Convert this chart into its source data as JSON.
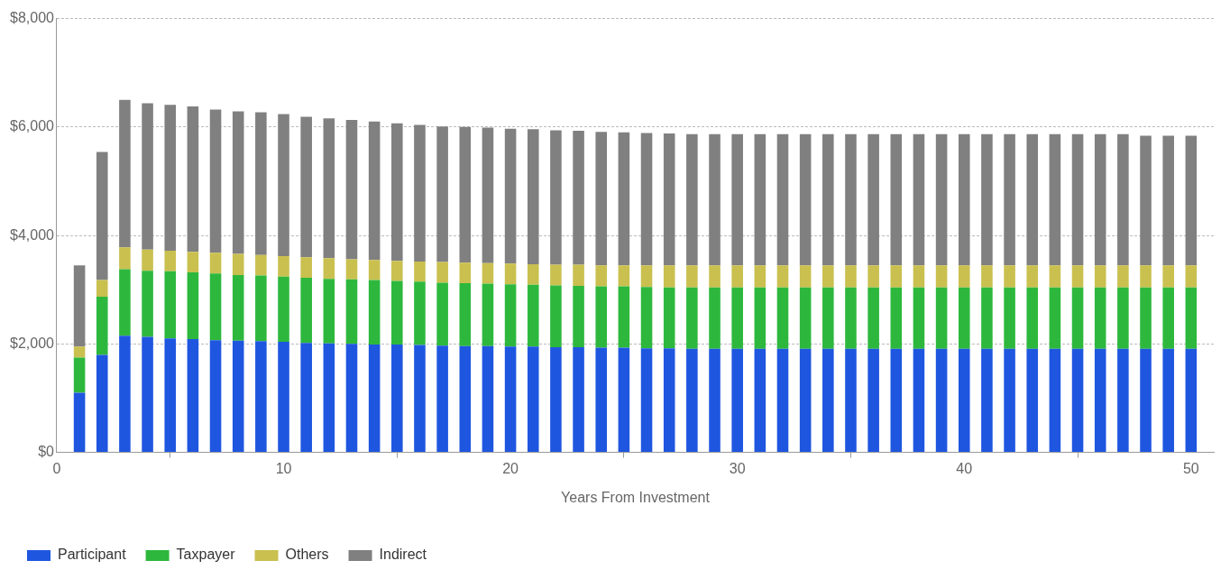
{
  "chart_data": {
    "type": "bar",
    "stacked": true,
    "xlabel": "Years From Investment",
    "x": [
      1,
      2,
      3,
      4,
      5,
      6,
      7,
      8,
      9,
      10,
      11,
      12,
      13,
      14,
      15,
      16,
      17,
      18,
      19,
      20,
      21,
      22,
      23,
      24,
      25,
      26,
      27,
      28,
      29,
      30,
      31,
      32,
      33,
      34,
      35,
      36,
      37,
      38,
      39,
      40,
      41,
      42,
      43,
      44,
      45,
      46,
      47,
      48,
      49,
      50
    ],
    "xlim": [
      0,
      51
    ],
    "xticks": [
      0,
      10,
      20,
      30,
      40,
      50
    ],
    "ylim": [
      0,
      8000
    ],
    "yticks": [
      {
        "value": 0,
        "label": "$0"
      },
      {
        "value": 2000,
        "label": "$2,000"
      },
      {
        "value": 4000,
        "label": "$4,000"
      },
      {
        "value": 6000,
        "label": "$6,000"
      },
      {
        "value": 8000,
        "label": "$8,000"
      }
    ],
    "grid": "y",
    "legend": "bottom left",
    "series": [
      {
        "name": "Participant",
        "color": "#1f56e0",
        "values": [
          1100,
          1800,
          2150,
          2130,
          2100,
          2090,
          2070,
          2060,
          2050,
          2040,
          2020,
          2010,
          2000,
          1990,
          1990,
          1980,
          1970,
          1960,
          1960,
          1950,
          1950,
          1940,
          1940,
          1930,
          1930,
          1920,
          1920,
          1910,
          1910,
          1910,
          1910,
          1910,
          1910,
          1910,
          1910,
          1910,
          1910,
          1910,
          1910,
          1910,
          1910,
          1910,
          1910,
          1910,
          1910,
          1910,
          1910,
          1910,
          1910,
          1910
        ]
      },
      {
        "name": "Taxpayer",
        "color": "#2db83d",
        "values": [
          650,
          1070,
          1230,
          1220,
          1240,
          1230,
          1230,
          1210,
          1210,
          1200,
          1200,
          1190,
          1190,
          1190,
          1170,
          1170,
          1160,
          1160,
          1150,
          1150,
          1140,
          1140,
          1130,
          1130,
          1130,
          1130,
          1120,
          1130,
          1130,
          1130,
          1130,
          1130,
          1130,
          1130,
          1130,
          1130,
          1130,
          1130,
          1130,
          1130,
          1130,
          1130,
          1130,
          1130,
          1130,
          1130,
          1130,
          1130,
          1130,
          1130
        ]
      },
      {
        "name": "Others",
        "color": "#c9c04f",
        "values": [
          200,
          310,
          400,
          390,
          380,
          380,
          380,
          390,
          380,
          380,
          380,
          380,
          370,
          370,
          370,
          370,
          380,
          380,
          380,
          380,
          380,
          380,
          390,
          390,
          390,
          400,
          410,
          410,
          410,
          410,
          410,
          410,
          410,
          410,
          410,
          410,
          410,
          410,
          410,
          410,
          410,
          410,
          410,
          410,
          410,
          410,
          410,
          410,
          410,
          410
        ]
      },
      {
        "name": "Indirect",
        "color": "#808080",
        "values": [
          1500,
          2360,
          2720,
          2700,
          2690,
          2680,
          2640,
          2630,
          2630,
          2620,
          2590,
          2580,
          2570,
          2550,
          2540,
          2520,
          2500,
          2500,
          2500,
          2490,
          2490,
          2480,
          2470,
          2460,
          2450,
          2440,
          2430,
          2420,
          2420,
          2420,
          2420,
          2420,
          2420,
          2420,
          2420,
          2420,
          2420,
          2420,
          2420,
          2420,
          2420,
          2420,
          2420,
          2420,
          2420,
          2420,
          2420,
          2390,
          2390,
          2390
        ]
      }
    ]
  }
}
